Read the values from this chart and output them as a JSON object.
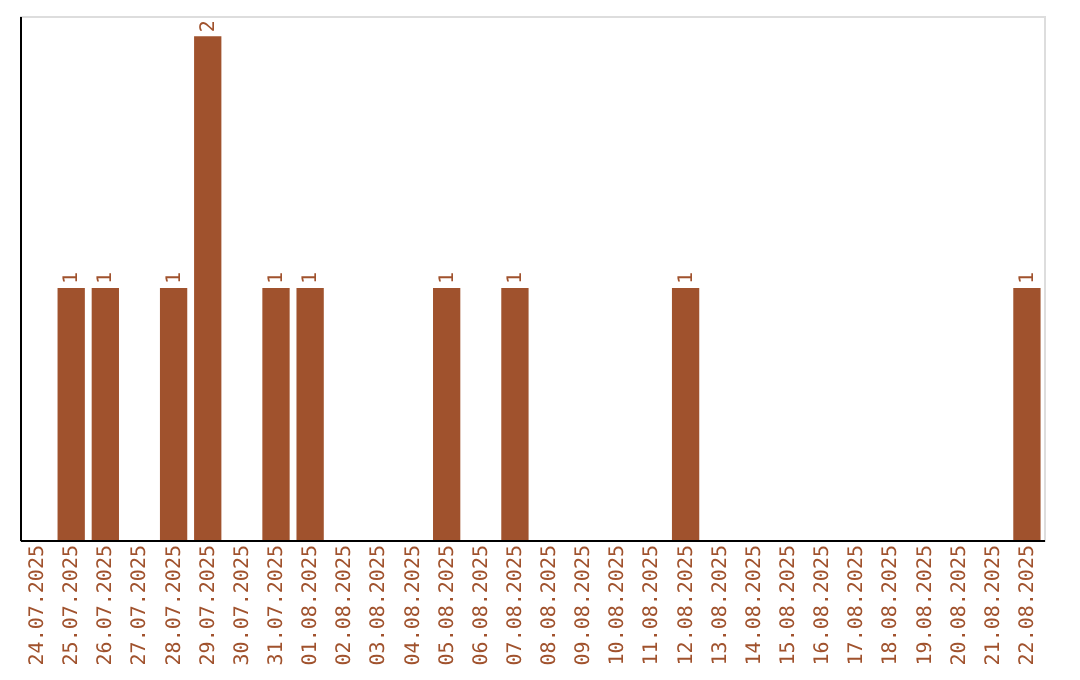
{
  "chart_data": {
    "type": "bar",
    "categories": [
      "24.07.2025",
      "25.07.2025",
      "26.07.2025",
      "27.07.2025",
      "28.07.2025",
      "29.07.2025",
      "30.07.2025",
      "31.07.2025",
      "01.08.2025",
      "02.08.2025",
      "03.08.2025",
      "04.08.2025",
      "05.08.2025",
      "06.08.2025",
      "07.08.2025",
      "08.08.2025",
      "09.08.2025",
      "10.08.2025",
      "11.08.2025",
      "12.08.2025",
      "13.08.2025",
      "14.08.2025",
      "15.08.2025",
      "16.08.2025",
      "17.08.2025",
      "18.08.2025",
      "19.08.2025",
      "20.08.2025",
      "21.08.2025",
      "22.08.2025"
    ],
    "values": [
      0,
      1,
      1,
      0,
      1,
      2,
      0,
      1,
      1,
      0,
      0,
      0,
      1,
      0,
      1,
      0,
      0,
      0,
      0,
      1,
      0,
      0,
      0,
      0,
      0,
      0,
      0,
      0,
      0,
      1
    ],
    "value_labels": [
      null,
      "1",
      "1",
      null,
      "1",
      "2",
      null,
      "1",
      "1",
      null,
      null,
      null,
      "1",
      null,
      "1",
      null,
      null,
      null,
      null,
      "1",
      null,
      null,
      null,
      null,
      null,
      null,
      null,
      null,
      null,
      "1"
    ],
    "color": "#a0522d",
    "ylim": [
      0,
      2.08
    ],
    "tick_labels": "x",
    "grid": false
  }
}
